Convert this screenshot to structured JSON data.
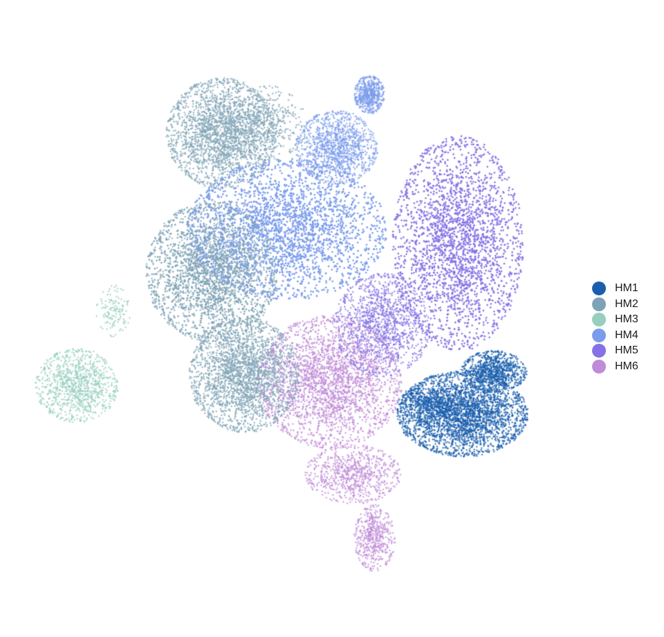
{
  "chart_data": {
    "type": "scatter",
    "title": "",
    "xlabel": "",
    "ylabel": "",
    "axes_visible": false,
    "grid": false,
    "legend_position": "right",
    "series": [
      {
        "name": "HM1",
        "color": "#1a5fae",
        "approx_points": 4500,
        "regions": [
          {
            "cx": 0.62,
            "cy": -0.55,
            "rx": 0.95,
            "ry": 0.58,
            "weight": 0.72
          },
          {
            "cx": 1.1,
            "cy": 0.05,
            "rx": 0.48,
            "ry": 0.28,
            "weight": 0.2
          },
          {
            "cx": 0.05,
            "cy": -0.4,
            "rx": 0.4,
            "ry": 0.25,
            "weight": 0.08
          }
        ]
      },
      {
        "name": "HM2",
        "color": "#7fa3b6",
        "approx_points": 9000,
        "regions": [
          {
            "cx": -3.05,
            "cy": 3.4,
            "rx": 0.8,
            "ry": 0.75,
            "weight": 0.25
          },
          {
            "cx": -3.2,
            "cy": 1.45,
            "rx": 0.95,
            "ry": 0.95,
            "weight": 0.42
          },
          {
            "cx": -2.7,
            "cy": 0.0,
            "rx": 0.8,
            "ry": 0.78,
            "weight": 0.28
          },
          {
            "cx": -2.35,
            "cy": 3.55,
            "rx": 0.6,
            "ry": 0.5,
            "weight": 0.05
          }
        ]
      },
      {
        "name": "HM3",
        "color": "#97cebe",
        "approx_points": 1100,
        "regions": [
          {
            "cx": -5.25,
            "cy": -0.15,
            "rx": 0.6,
            "ry": 0.5,
            "weight": 0.88
          },
          {
            "cx": -4.7,
            "cy": 0.9,
            "rx": 0.25,
            "ry": 0.35,
            "weight": 0.12
          }
        ]
      },
      {
        "name": "HM4",
        "color": "#7b9ced",
        "approx_points": 8000,
        "regions": [
          {
            "cx": -2.05,
            "cy": 2.05,
            "rx": 1.45,
            "ry": 0.95,
            "weight": 0.78
          },
          {
            "cx": -1.3,
            "cy": 3.2,
            "rx": 0.6,
            "ry": 0.5,
            "weight": 0.15
          },
          {
            "cx": -0.8,
            "cy": 3.95,
            "rx": 0.22,
            "ry": 0.26,
            "weight": 0.07
          }
        ]
      },
      {
        "name": "HM5",
        "color": "#8472e6",
        "approx_points": 6500,
        "regions": [
          {
            "cx": 0.55,
            "cy": 1.85,
            "rx": 0.95,
            "ry": 1.45,
            "weight": 0.8
          },
          {
            "cx": -0.6,
            "cy": 0.7,
            "rx": 0.7,
            "ry": 0.7,
            "weight": 0.2
          }
        ]
      },
      {
        "name": "HM6",
        "color": "#c08bd8",
        "approx_points": 4200,
        "regions": [
          {
            "cx": -1.4,
            "cy": -0.1,
            "rx": 1.05,
            "ry": 0.9,
            "weight": 0.7
          },
          {
            "cx": -1.05,
            "cy": -1.4,
            "rx": 0.7,
            "ry": 0.4,
            "weight": 0.18
          },
          {
            "cx": -0.72,
            "cy": -2.3,
            "rx": 0.3,
            "ry": 0.45,
            "weight": 0.12
          }
        ]
      }
    ],
    "xlim": [
      -6.0,
      2.0
    ],
    "ylim": [
      -3.0,
      4.6
    ]
  }
}
